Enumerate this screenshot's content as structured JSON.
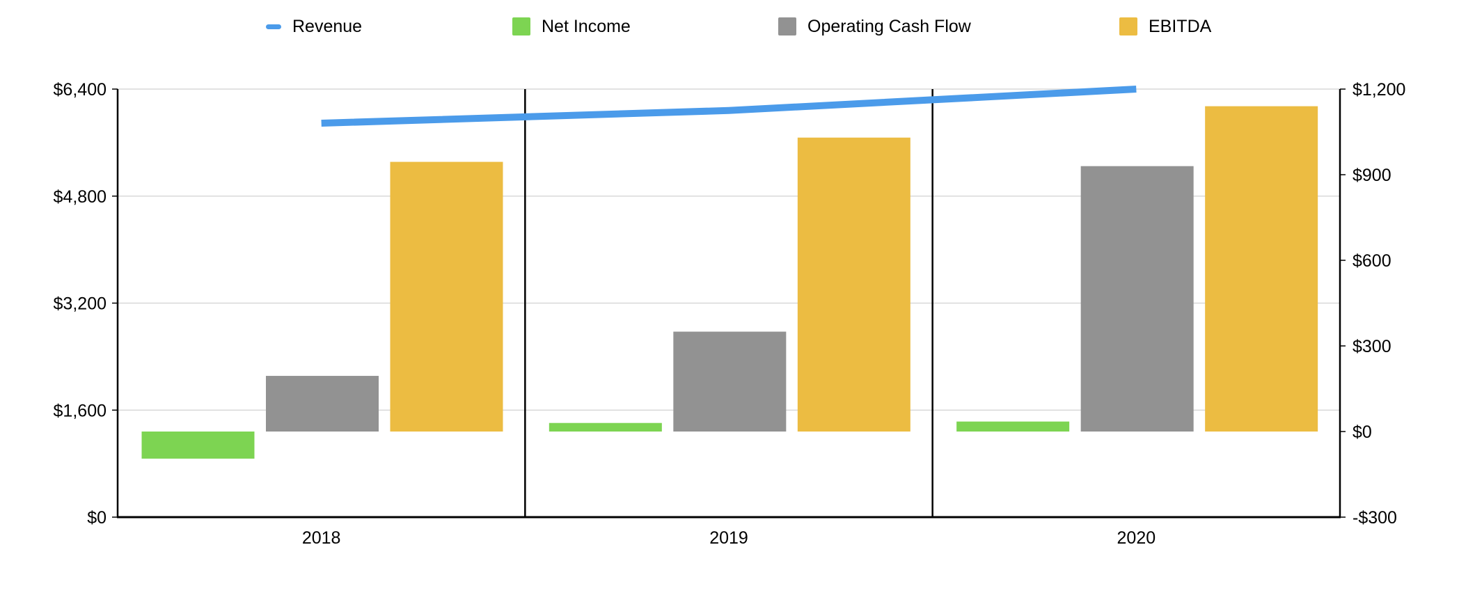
{
  "legend": {
    "items": [
      {
        "label": "Revenue",
        "color": "#4B9BEA",
        "mark": "line"
      },
      {
        "label": "Net Income",
        "color": "#7DD452",
        "mark": "square"
      },
      {
        "label": "Operating Cash Flow",
        "color": "#929292",
        "mark": "square"
      },
      {
        "label": "EBITDA",
        "color": "#ECBC42",
        "mark": "square"
      }
    ]
  },
  "chart_data": {
    "type": "combo",
    "subtype": "grouped bars + line, dual axis",
    "categories": [
      "2018",
      "2019",
      "2020"
    ],
    "bar_series": [
      {
        "name": "Net Income",
        "axis": "right",
        "color": "#7DD452",
        "values": [
          -95,
          30,
          35
        ]
      },
      {
        "name": "Operating Cash Flow",
        "axis": "right",
        "color": "#929292",
        "values": [
          195,
          350,
          930
        ]
      },
      {
        "name": "EBITDA",
        "axis": "right",
        "color": "#ECBC42",
        "values": [
          945,
          1030,
          1140
        ]
      }
    ],
    "line_series": [
      {
        "name": "Revenue",
        "axis": "left",
        "color": "#4B9BEA",
        "values": [
          5890,
          6080,
          6400
        ]
      }
    ],
    "left_axis": {
      "min": 0,
      "max": 6400,
      "tick_labels": [
        "$0",
        "$1,600",
        "$3,200",
        "$4,800",
        "$6,400"
      ]
    },
    "right_axis": {
      "min": -300,
      "max": 1200,
      "tick_labels": [
        "-$300",
        "$0",
        "$300",
        "$600",
        "$900",
        "$1,200"
      ]
    },
    "grid": "horizontal gridlines at left-axis ticks; vertical black dividers between year panels",
    "legend_position": "top",
    "colors": {
      "gridline": "#D8D8D8",
      "frame": "#000000",
      "text": "#000000",
      "background": "#FFFFFF"
    }
  }
}
